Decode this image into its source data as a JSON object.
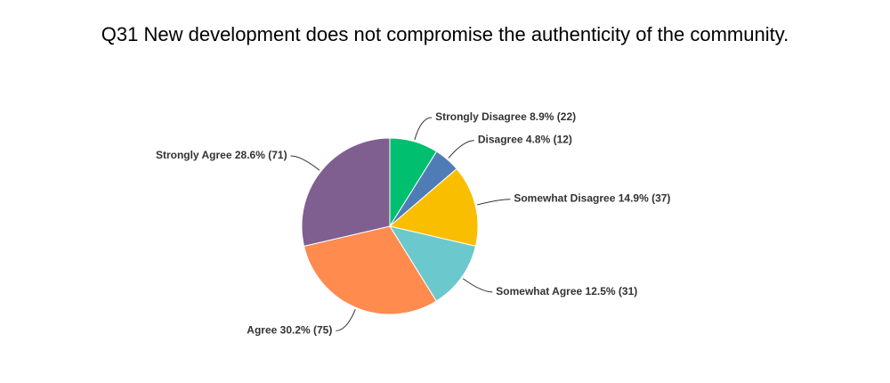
{
  "chart_data": {
    "type": "pie",
    "title": "Q31 New development does not compromise the authenticity of the community.",
    "categories": [
      "Strongly Disagree",
      "Disagree",
      "Somewhat Disagree",
      "Somewhat Agree",
      "Agree",
      "Strongly Agree"
    ],
    "values": [
      8.9,
      4.8,
      14.9,
      12.5,
      30.2,
      28.6
    ],
    "value_labels": [
      "8.9% (22)",
      "4.8% (12)",
      "14.9% (37)",
      "12.5% (31)",
      "30.2% (75)",
      "28.6% (71)"
    ],
    "colors": [
      "#00bf6f",
      "#507cb6",
      "#f9be00",
      "#6bc8cd",
      "#ff8b4f",
      "#7f5f90"
    ]
  }
}
